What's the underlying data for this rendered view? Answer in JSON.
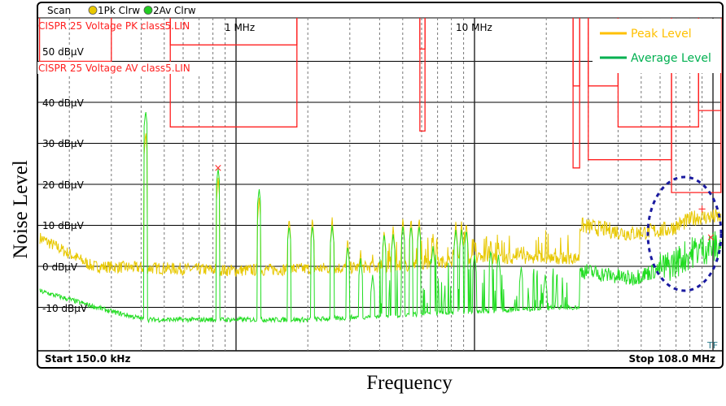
{
  "header": {
    "scan_label": "Scan",
    "trace1_label": "1Pk Clrw",
    "trace2_label": "2Av Clrw",
    "trace1_color": "#e8c800",
    "trace2_color": "#22cc22"
  },
  "limit_labels": {
    "pk": "CISPR 25 Voltage PK class5.LIN",
    "av": "CISPR 25 Voltage AV class5.LIN"
  },
  "footer": {
    "start": "Start 150.0 kHz",
    "stop": "Stop 108.0 MHz",
    "tf": "TF"
  },
  "chart_data": {
    "type": "line",
    "xlabel": "Frequency",
    "ylabel": "Noise Level",
    "x_scale": "log",
    "xlim_hz": [
      150000,
      108000000
    ],
    "ylim": [
      -20,
      60
    ],
    "y_unit": "dBµV",
    "yticks": [
      {
        "value": 50,
        "label": "50 dBµV"
      },
      {
        "value": 40,
        "label": "40 dBµV"
      },
      {
        "value": 30,
        "label": "30 dBµV"
      },
      {
        "value": 20,
        "label": "20 dBµV"
      },
      {
        "value": 10,
        "label": "10 dBµV"
      },
      {
        "value": 0,
        "label": "0 dBµV"
      },
      {
        "value": -10,
        "label": "-10 dBµV"
      }
    ],
    "xticks": [
      {
        "value_hz": 1000000,
        "label": "1 MHz"
      },
      {
        "value_hz": 10000000,
        "label": "10 MHz"
      }
    ],
    "grid": true,
    "legend": {
      "placement": "top-right",
      "entries": [
        {
          "name": "Peak Level",
          "color": "#ffc000"
        },
        {
          "name": "Average Level",
          "color": "#00b050"
        }
      ]
    },
    "limit_color": "#ff2020",
    "limits": {
      "pk": [
        {
          "f_mhz": [
            0.15,
            0.3
          ],
          "db": 50
        },
        {
          "f_mhz": [
            0.53,
            1.8
          ],
          "db": 54
        },
        {
          "f_mhz": [
            5.9,
            6.2
          ],
          "db": 53
        },
        {
          "f_mhz": [
            25.9,
            27.6
          ],
          "db": 44
        },
        {
          "f_mhz": [
            30,
            40
          ],
          "db": 44
        },
        {
          "f_mhz": [
            40,
            87
          ],
          "db": 34
        },
        {
          "f_mhz": [
            87,
            108
          ],
          "db": 38
        }
      ],
      "av": [
        {
          "f_mhz": [
            0.53,
            1.8
          ],
          "db": 34
        },
        {
          "f_mhz": [
            5.9,
            6.2
          ],
          "db": 33
        },
        {
          "f_mhz": [
            25.9,
            27.6
          ],
          "db": 24
        },
        {
          "f_mhz": [
            30,
            67
          ],
          "db": 26
        },
        {
          "f_mhz": [
            67,
            108
          ],
          "db": 18
        }
      ]
    },
    "series": [
      {
        "name": "Peak Level",
        "color": "#e8c800",
        "baseline": [
          [
            0.15,
            7
          ],
          [
            0.25,
            0
          ],
          [
            1,
            -1
          ],
          [
            5,
            0
          ],
          [
            10,
            2
          ],
          [
            25,
            2
          ],
          [
            27.5,
            2
          ],
          [
            27.7,
            10
          ],
          [
            45,
            8
          ],
          [
            65,
            9
          ],
          [
            85,
            12
          ],
          [
            108,
            12
          ]
        ],
        "spikes": [
          [
            0.418,
            33
          ],
          [
            0.841,
            22
          ],
          [
            1.25,
            17
          ],
          [
            1.67,
            12
          ],
          [
            2.09,
            12
          ],
          [
            2.53,
            12
          ],
          [
            2.94,
            7
          ],
          [
            3.33,
            4
          ],
          [
            3.74,
            3
          ],
          [
            4.18,
            9
          ],
          [
            4.56,
            10
          ],
          [
            5.01,
            12
          ],
          [
            5.42,
            12
          ],
          [
            5.86,
            12
          ],
          [
            6.7,
            8
          ],
          [
            8.35,
            11
          ],
          [
            8.82,
            11
          ],
          [
            9.24,
            11
          ],
          [
            10,
            6
          ],
          [
            11.7,
            7
          ],
          [
            12.6,
            6
          ],
          [
            15.7,
            5
          ],
          [
            19.8,
            4
          ]
        ]
      },
      {
        "name": "Average Level",
        "color": "#22dd22",
        "baseline": [
          [
            0.15,
            -6
          ],
          [
            0.3,
            -11
          ],
          [
            0.42,
            -13
          ],
          [
            2,
            -13
          ],
          [
            10,
            -11
          ],
          [
            25,
            -10
          ],
          [
            27.5,
            -10
          ],
          [
            27.7,
            -1
          ],
          [
            45,
            -3
          ],
          [
            65,
            0
          ],
          [
            85,
            4
          ],
          [
            108,
            5
          ]
        ],
        "spikes": [
          [
            0.418,
            38
          ],
          [
            0.841,
            24
          ],
          [
            1.25,
            19
          ],
          [
            1.67,
            10
          ],
          [
            2.09,
            10
          ],
          [
            2.53,
            10
          ],
          [
            2.94,
            5
          ],
          [
            3.33,
            2
          ],
          [
            3.74,
            -2
          ],
          [
            4.18,
            8
          ],
          [
            4.56,
            8
          ],
          [
            5.01,
            10
          ],
          [
            5.42,
            10
          ],
          [
            5.86,
            10
          ],
          [
            6.7,
            5
          ],
          [
            8.35,
            9
          ],
          [
            8.82,
            9
          ],
          [
            9.24,
            9
          ],
          [
            10,
            3
          ],
          [
            11.7,
            4
          ],
          [
            12.6,
            3
          ],
          [
            15.7,
            0
          ],
          [
            19.8,
            -2
          ]
        ]
      }
    ],
    "markers": [
      {
        "trace": "Average Level",
        "symbol": "x",
        "f_mhz": 0.841,
        "db": 24
      },
      {
        "trace": "Peak Level",
        "symbol": "+",
        "f_mhz": 90,
        "db": 14
      },
      {
        "trace": "Average Level",
        "symbol": "x",
        "f_mhz": 98,
        "db": 7
      }
    ],
    "annotation": {
      "shape": "dashed-ellipse",
      "color": "#1a1aa0",
      "f_mhz_range": [
        76,
        108
      ]
    }
  }
}
